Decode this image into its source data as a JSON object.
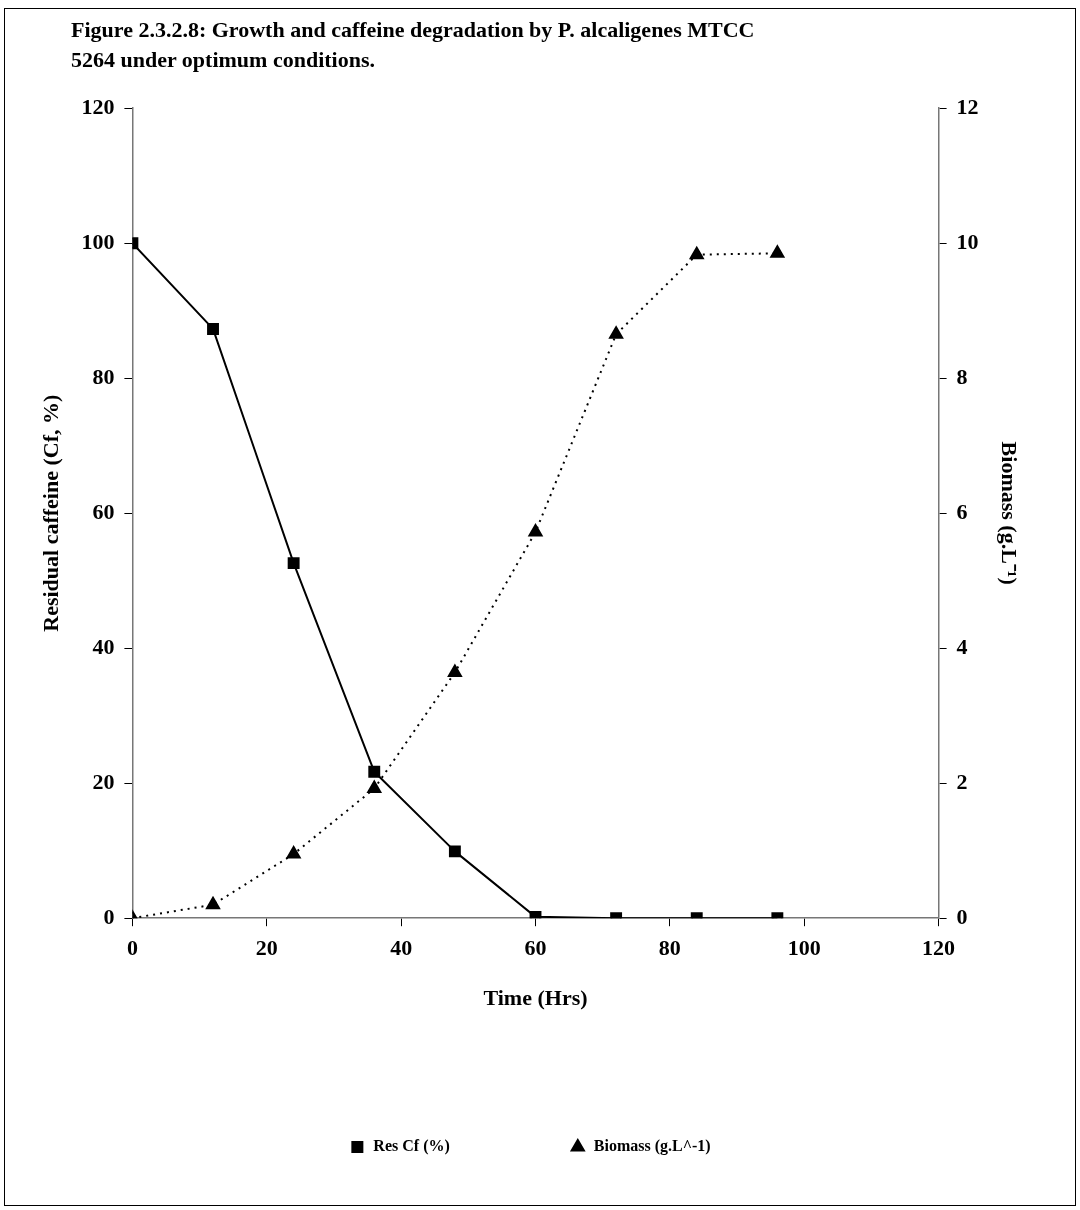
{
  "chart_data": {
    "type": "line",
    "title": "Figure 2.3.2.8: Growth and caffeine degradation by P. alcaligenes MTCC 5264 under optimum conditions.",
    "xlabel": "Time (Hrs)",
    "ylabel": "Residual caffeine (Cf, %)",
    "y2label": "Biomass (g.L⁻¹)",
    "x": [
      0,
      12,
      24,
      36,
      48,
      60,
      72,
      84,
      96
    ],
    "series": [
      {
        "name": "Res Cf (%)",
        "color": "#000000",
        "marker": "square",
        "line_style": "solid",
        "values": [
          100,
          87.3,
          52.6,
          21.7,
          9.9,
          0.2,
          0,
          0,
          0
        ]
      },
      {
        "name": "Biomass (g.L^-1)",
        "color": "#000000",
        "marker": "triangle",
        "line_style": "dotted",
        "axis": "y2",
        "values": [
          0,
          0.2,
          0.95,
          1.92,
          3.64,
          5.72,
          8.65,
          9.83,
          9.85
        ]
      }
    ],
    "xlim": [
      0,
      120
    ],
    "xticks": [
      0,
      20,
      40,
      60,
      80,
      100,
      120
    ],
    "ylim": [
      0,
      120
    ],
    "yticks": [
      0,
      20,
      40,
      60,
      80,
      100,
      120
    ],
    "y2lim": [
      0,
      12
    ],
    "y2ticks": [
      0,
      2,
      4,
      6,
      8,
      10,
      12
    ],
    "grid": false,
    "legend": "bottom"
  }
}
